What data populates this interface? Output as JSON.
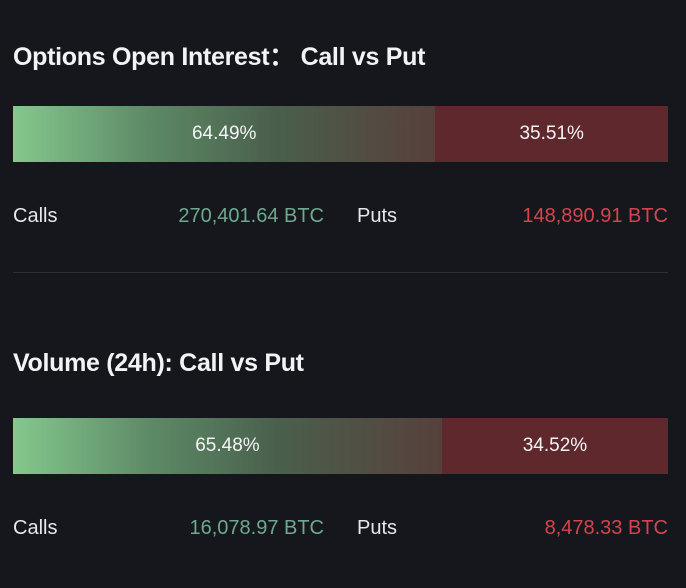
{
  "open_interest": {
    "title": "Options Open Interest： Call vs Put",
    "call_pct_label": "64.49%",
    "put_pct_label": "35.51%",
    "call_share": 0.6449,
    "calls_label": "Calls",
    "calls_value": "270,401.64 BTC",
    "puts_label": "Puts",
    "puts_value": "148,890.91 BTC"
  },
  "volume": {
    "title": "Volume (24h): Call vs Put",
    "call_pct_label": "65.48%",
    "put_pct_label": "34.52%",
    "call_share": 0.6548,
    "calls_label": "Calls",
    "calls_value": "16,078.97 BTC",
    "puts_label": "Puts",
    "puts_value": "8,478.33 BTC"
  },
  "colors": {
    "background": "#15171c",
    "call_green": "#84c88d",
    "put_red": "#5f282c",
    "calls_value_text": "#6ea88f",
    "puts_value_text": "#d5434f"
  }
}
